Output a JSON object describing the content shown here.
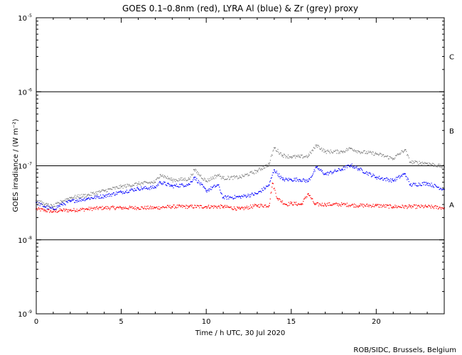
{
  "chart_data": {
    "type": "scatter",
    "title": "GOES 0.1–0.8nm (red), LYRA Al (blue) & Zr (grey) proxy",
    "xlabel": "Time / h UTC, 30 Jul 2020",
    "ylabel": "GOES irradiance / (W m⁻²)",
    "xlim": [
      0,
      24
    ],
    "ylim": [
      1e-09,
      1e-05
    ],
    "yscale": "log",
    "x_ticks": [
      0,
      5,
      10,
      15,
      20
    ],
    "y_ticks": [
      {
        "value": 1e-05,
        "label": "10",
        "exp": "-5"
      },
      {
        "value": 1e-06,
        "label": "10",
        "exp": "-6"
      },
      {
        "value": 1e-07,
        "label": "10",
        "exp": "-7"
      },
      {
        "value": 1e-08,
        "label": "10",
        "exp": "-8"
      },
      {
        "value": 1e-09,
        "label": "10",
        "exp": "-9"
      }
    ],
    "flare_class_lines": [
      1e-06,
      1e-07,
      1e-08
    ],
    "flare_classes": [
      {
        "label": "C",
        "y": 3e-06
      },
      {
        "label": "B",
        "y": 3e-07
      },
      {
        "label": "A",
        "y": 3e-08
      }
    ],
    "series": [
      {
        "name": "GOES 0.1–0.8nm",
        "color": "#ff0000",
        "x": [
          0,
          0.5,
          1,
          1.5,
          2,
          3,
          4,
          5,
          6,
          7,
          8,
          9,
          10,
          11,
          12,
          13,
          13.7,
          13.9,
          14.2,
          14.7,
          15,
          15.6,
          16,
          16.4,
          17,
          18,
          19,
          20,
          21,
          22,
          23,
          24
        ],
        "y": [
          2.6e-08,
          2.5e-08,
          2.4e-08,
          2.5e-08,
          2.5e-08,
          2.6e-08,
          2.7e-08,
          2.7e-08,
          2.7e-08,
          2.7e-08,
          2.8e-08,
          2.8e-08,
          2.8e-08,
          2.8e-08,
          2.6e-08,
          2.9e-08,
          2.9e-08,
          5.8e-08,
          3.6e-08,
          3e-08,
          3.1e-08,
          3e-08,
          4.2e-08,
          3e-08,
          3e-08,
          3e-08,
          2.9e-08,
          2.9e-08,
          2.8e-08,
          2.8e-08,
          2.8e-08,
          2.7e-08
        ]
      },
      {
        "name": "LYRA Al proxy",
        "color": "#0000ff",
        "x": [
          0,
          0.5,
          1,
          1.5,
          2,
          3,
          4,
          5,
          6,
          7,
          7.3,
          8,
          9,
          9.3,
          10,
          10.7,
          11,
          12,
          13,
          13.7,
          14,
          14.5,
          15,
          15.5,
          16,
          16.5,
          17,
          18,
          18.5,
          19,
          20,
          21,
          21.7,
          22,
          23,
          24
        ],
        "y": [
          3.2e-08,
          2.8e-08,
          2.6e-08,
          3e-08,
          3.3e-08,
          3.6e-08,
          3.9e-08,
          4.4e-08,
          4.9e-08,
          5.1e-08,
          6e-08,
          5.3e-08,
          5.6e-08,
          7e-08,
          4.6e-08,
          5.5e-08,
          3.7e-08,
          3.8e-08,
          4.2e-08,
          5.5e-08,
          8.8e-08,
          6.5e-08,
          6.5e-08,
          6.5e-08,
          6.2e-08,
          9.5e-08,
          7.7e-08,
          9e-08,
          1.02e-07,
          9e-08,
          7e-08,
          6.3e-08,
          7.8e-08,
          5.5e-08,
          5.8e-08,
          4.8e-08
        ]
      },
      {
        "name": "LYRA Zr proxy",
        "color": "#808080",
        "x": [
          0,
          0.5,
          1,
          1.5,
          2,
          3,
          4,
          5,
          6,
          7,
          7.3,
          8,
          9,
          9.3,
          10,
          10.7,
          11,
          12,
          13,
          13.7,
          14,
          14.5,
          15,
          15.5,
          16,
          16.5,
          17,
          18,
          18.5,
          19,
          20,
          21,
          21.7,
          22,
          23,
          24
        ],
        "y": [
          3.4e-08,
          3e-08,
          2.8e-08,
          3.3e-08,
          3.7e-08,
          4e-08,
          4.6e-08,
          5.2e-08,
          5.7e-08,
          6e-08,
          7.6e-08,
          6.4e-08,
          6.6e-08,
          8.8e-08,
          6.2e-08,
          7.5e-08,
          6.8e-08,
          7e-08,
          8.5e-08,
          1.05e-07,
          1.75e-07,
          1.38e-07,
          1.32e-07,
          1.32e-07,
          1.35e-07,
          1.9e-07,
          1.55e-07,
          1.55e-07,
          1.72e-07,
          1.55e-07,
          1.45e-07,
          1.25e-07,
          1.65e-07,
          1.12e-07,
          1.08e-07,
          9.6e-08
        ]
      }
    ],
    "credit": "ROB/SIDC, Brussels, Belgium",
    "grid": false,
    "legend": "none"
  }
}
